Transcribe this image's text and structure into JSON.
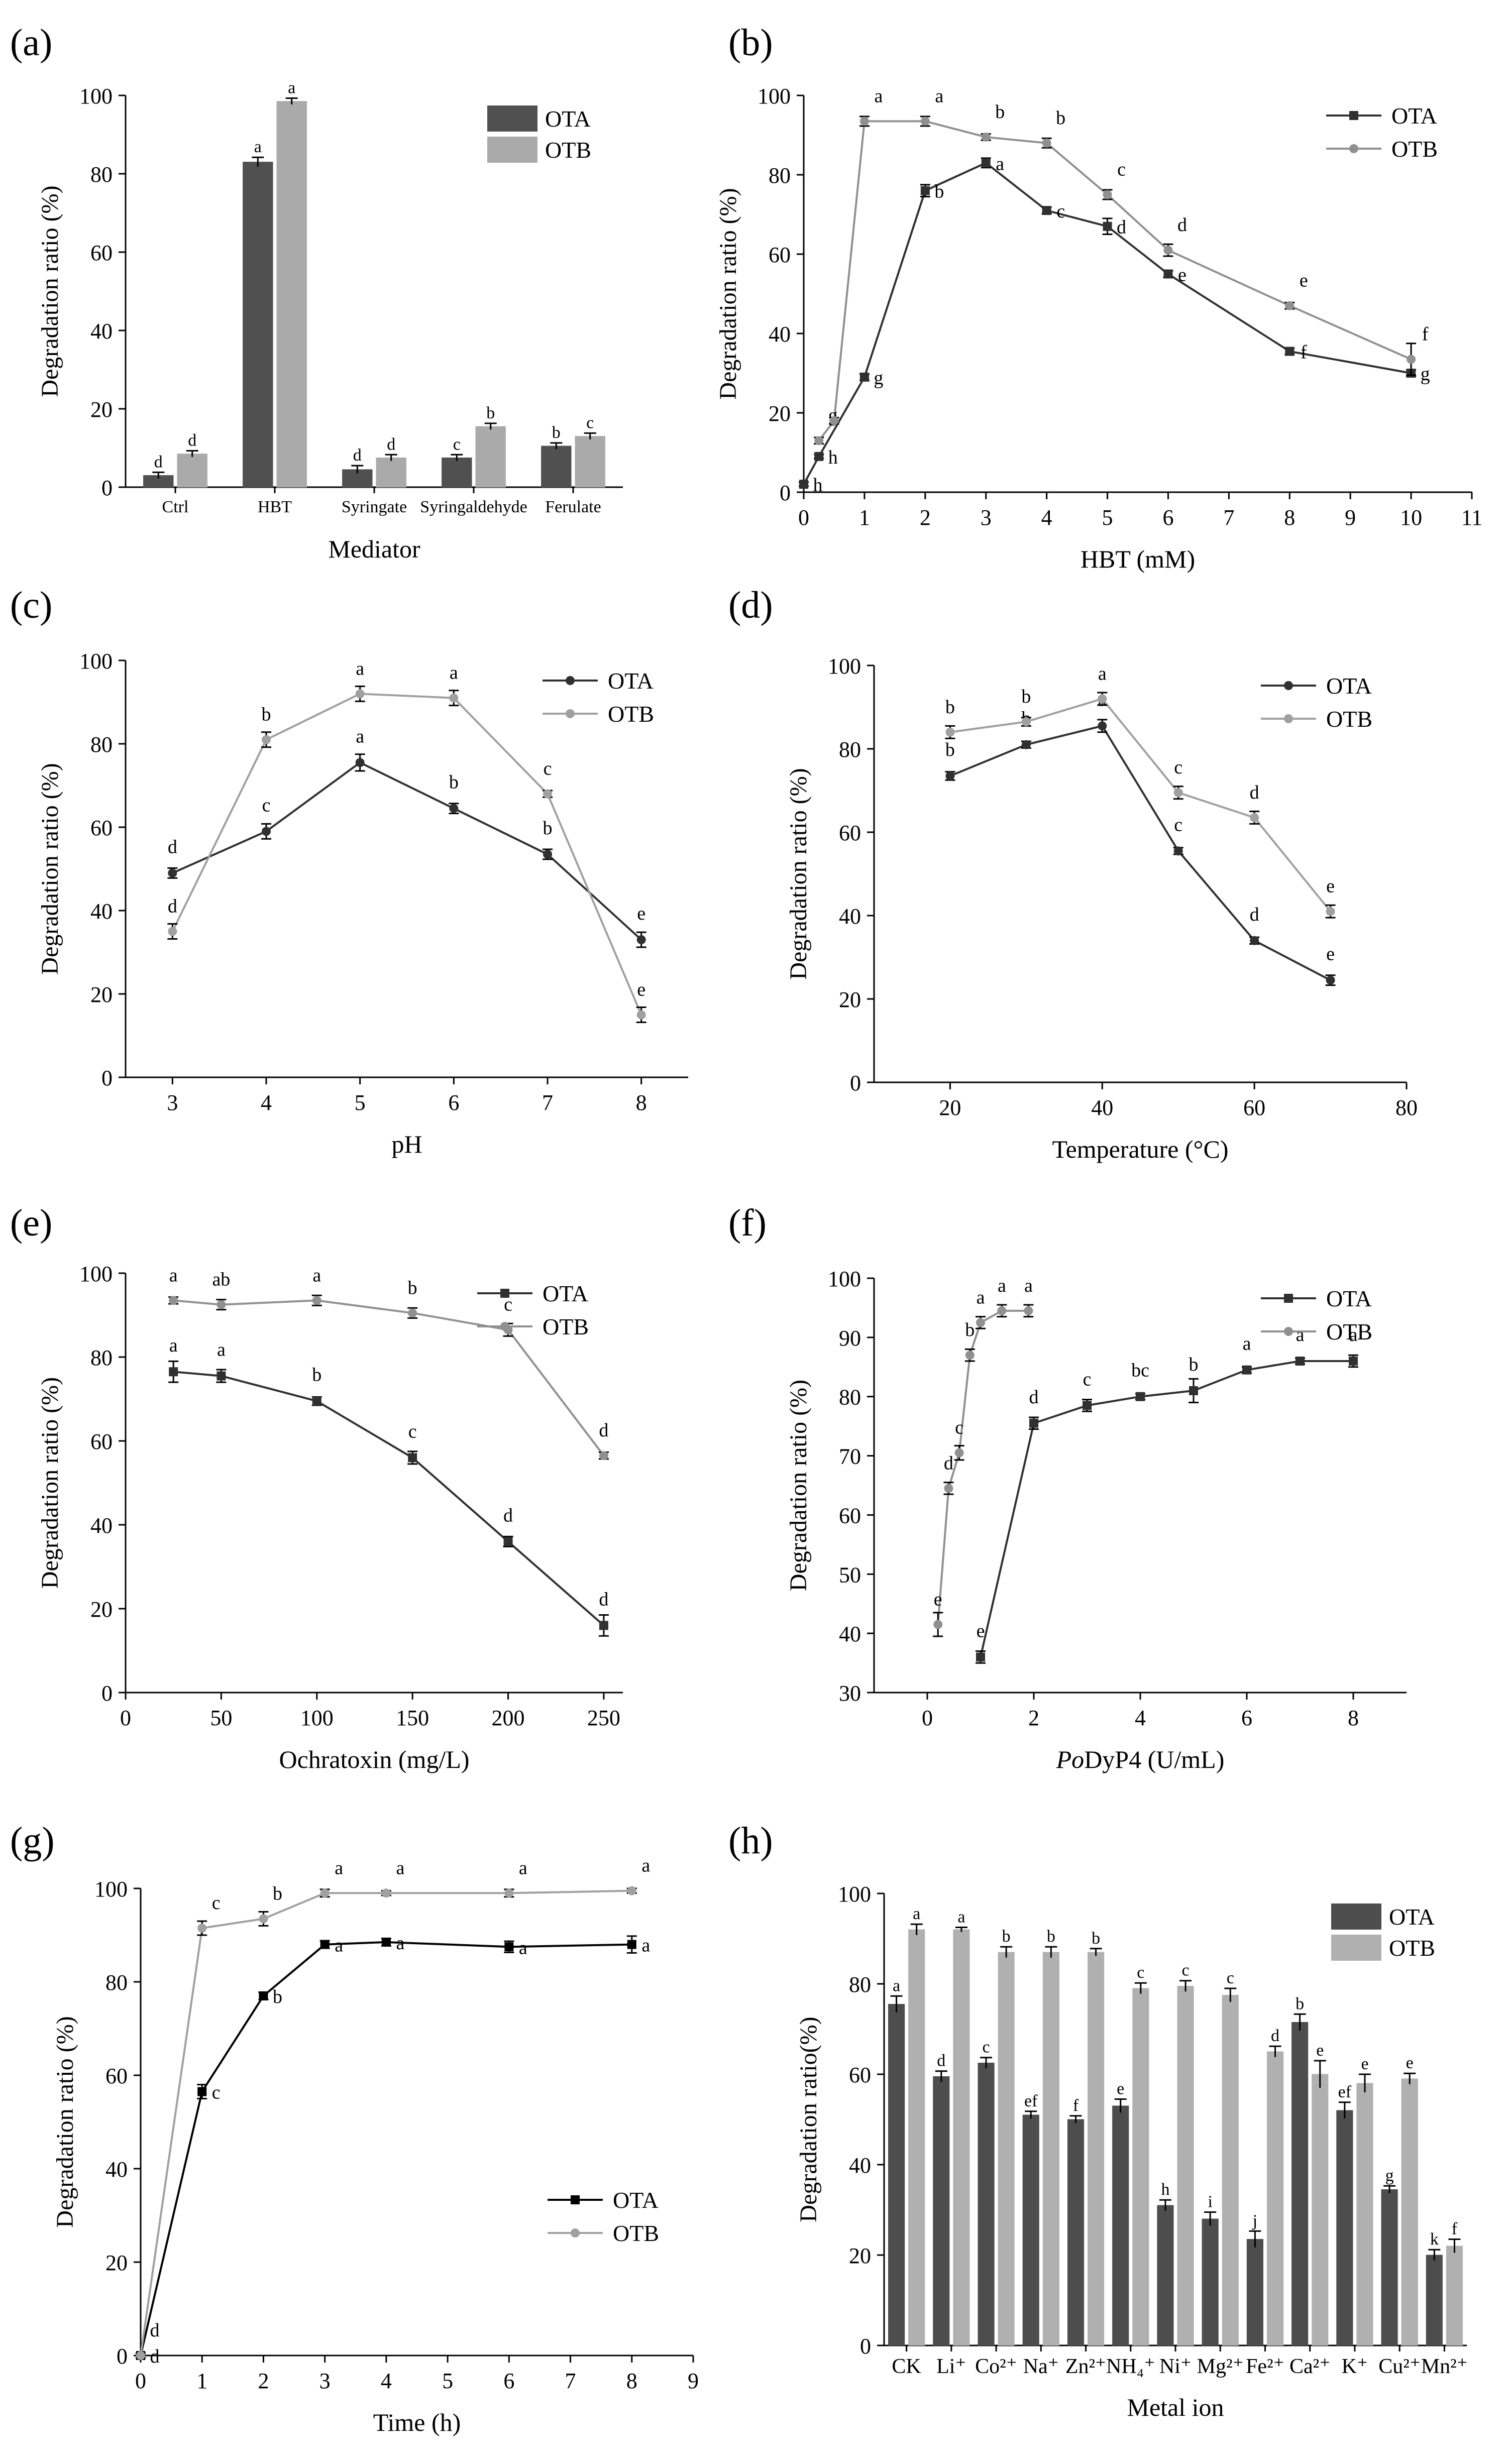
{
  "chart_data": [
    {
      "id": "a",
      "panel_label": "(a)",
      "type": "bar",
      "ylabel": "Degradation ratio (%)",
      "xlabel": "Mediator",
      "ylim": [
        0,
        100
      ],
      "yticks": [
        0,
        20,
        40,
        60,
        80,
        100
      ],
      "categories": [
        "Ctrl",
        "HBT",
        "Syringate",
        "Syringaldehyde",
        "Ferulate"
      ],
      "series": [
        {
          "name": "OTA",
          "color": "#505050",
          "values": [
            3,
            83,
            4.5,
            7.5,
            10.5
          ],
          "errors": [
            0.8,
            1.2,
            1.0,
            0.8,
            0.8
          ],
          "letters": [
            "d",
            "a",
            "d",
            "c",
            "b"
          ]
        },
        {
          "name": "OTB",
          "color": "#aaaaaa",
          "values": [
            8.5,
            98.5,
            7.5,
            15.5,
            13
          ],
          "errors": [
            0.8,
            0.8,
            0.8,
            0.8,
            0.8
          ],
          "letters": [
            "d",
            "a",
            "d",
            "b",
            "c"
          ]
        }
      ],
      "legend": "top-right"
    },
    {
      "id": "b",
      "panel_label": "(b)",
      "type": "line",
      "ylabel": "Degradation ratio (%)",
      "xlabel": "HBT (mM)",
      "xlim": [
        0,
        11
      ],
      "xticks": [
        0,
        1,
        2,
        3,
        4,
        5,
        6,
        7,
        8,
        9,
        10,
        11
      ],
      "ylim": [
        0,
        100
      ],
      "yticks": [
        0,
        20,
        40,
        60,
        80,
        100
      ],
      "series": [
        {
          "name": "OTA",
          "color": "#303030",
          "marker": "square",
          "x": [
            0,
            0.25,
            1,
            2,
            3,
            4,
            5,
            6,
            8,
            10
          ],
          "y": [
            2,
            9,
            29,
            76,
            83,
            71,
            67,
            55,
            35.5,
            30
          ],
          "errors": [
            0.5,
            0.5,
            0.8,
            1.5,
            1.2,
            0.8,
            2,
            0.8,
            0.8,
            0.8
          ],
          "letters": [
            "h",
            "h",
            "g",
            "b",
            "a",
            "c",
            "d",
            "e",
            "f",
            "g"
          ]
        },
        {
          "name": "OTB",
          "color": "#909090",
          "marker": "circle",
          "x": [
            0.25,
            0.5,
            1,
            2,
            3,
            4,
            5,
            6,
            8,
            10
          ],
          "y": [
            13,
            18,
            93.5,
            93.5,
            89.5,
            88,
            75,
            61,
            47,
            33.5
          ],
          "errors": [
            0.8,
            0.8,
            1.2,
            1.2,
            0.8,
            1.2,
            1.2,
            1.5,
            0.8,
            4
          ],
          "letters": [
            "g",
            "",
            "a",
            "a",
            "b",
            "b",
            "c",
            "d",
            "e",
            "f"
          ]
        }
      ],
      "legend": "top-right"
    },
    {
      "id": "c",
      "panel_label": "(c)",
      "type": "line",
      "ylabel": "Degradation ratio (%)",
      "xlabel": "pH",
      "xlim": [
        2.5,
        8.5
      ],
      "xticks": [
        3,
        4,
        5,
        6,
        7,
        8
      ],
      "ylim": [
        0,
        100
      ],
      "yticks": [
        0,
        20,
        40,
        60,
        80,
        100
      ],
      "series": [
        {
          "name": "OTA",
          "color": "#303030",
          "marker": "dot",
          "x": [
            3,
            4,
            5,
            6,
            7,
            8
          ],
          "y": [
            49,
            59,
            75.5,
            64.5,
            53.5,
            33
          ],
          "errors": [
            1.2,
            1.8,
            2,
            1.2,
            1.2,
            1.8
          ],
          "letters": [
            "d",
            "c",
            "a",
            "b",
            "b",
            "e"
          ]
        },
        {
          "name": "OTB",
          "color": "#a0a0a0",
          "marker": "dot",
          "x": [
            3,
            4,
            5,
            6,
            7,
            8
          ],
          "y": [
            35,
            81,
            92,
            91,
            68,
            15
          ],
          "errors": [
            1.8,
            1.8,
            1.8,
            1.8,
            0.8,
            1.8
          ],
          "letters": [
            "d",
            "b",
            "a",
            "a",
            "c",
            "e"
          ]
        }
      ],
      "legend": "top-right"
    },
    {
      "id": "d",
      "panel_label": "(d)",
      "type": "line",
      "ylabel": "Degradation ratio (%)",
      "xlabel": "Temperature (°C)",
      "xlim": [
        10,
        80
      ],
      "xticks": [
        20,
        40,
        60,
        80
      ],
      "ylim": [
        0,
        100
      ],
      "yticks": [
        0,
        20,
        40,
        60,
        80,
        100
      ],
      "series": [
        {
          "name": "OTA",
          "color": "#303030",
          "marker": "dot",
          "x": [
            20,
            30,
            40,
            50,
            60,
            70
          ],
          "y": [
            73.5,
            81,
            85.5,
            55.5,
            34,
            24.5
          ],
          "errors": [
            1,
            0.8,
            1.5,
            0.8,
            0.8,
            1.2
          ],
          "letters": [
            "b",
            "b",
            "a",
            "c",
            "d",
            "e"
          ]
        },
        {
          "name": "OTB",
          "color": "#a0a0a0",
          "marker": "dot",
          "x": [
            20,
            30,
            40,
            50,
            60,
            70
          ],
          "y": [
            84,
            86.5,
            92,
            69.5,
            63.5,
            41
          ],
          "errors": [
            1.5,
            1,
            1.5,
            1.5,
            1.5,
            1.5
          ],
          "letters": [
            "b",
            "b",
            "a",
            "c",
            "d",
            "e"
          ]
        }
      ],
      "legend": "top-right"
    },
    {
      "id": "e",
      "panel_label": "(e)",
      "type": "line",
      "ylabel": "Degradation ratio (%)",
      "xlabel": "Ochratoxin (mg/L)",
      "xlim": [
        0,
        260
      ],
      "xticks": [
        0,
        50,
        100,
        150,
        200,
        250
      ],
      "ylim": [
        0,
        100
      ],
      "yticks": [
        0,
        20,
        40,
        60,
        80,
        100
      ],
      "series": [
        {
          "name": "OTA",
          "color": "#303030",
          "marker": "square",
          "x": [
            25,
            50,
            100,
            150,
            200,
            250
          ],
          "y": [
            76.5,
            75.5,
            69.5,
            56,
            36,
            16
          ],
          "errors": [
            2.5,
            1.5,
            1,
            1.5,
            1.2,
            2.5
          ],
          "letters": [
            "a",
            "a",
            "b",
            "c",
            "d",
            "d"
          ]
        },
        {
          "name": "OTB",
          "color": "#909090",
          "marker": "circle",
          "x": [
            25,
            50,
            100,
            150,
            200,
            250
          ],
          "y": [
            93.5,
            92.5,
            93.5,
            90.5,
            86.5,
            56.5
          ],
          "errors": [
            0.8,
            1.2,
            1.2,
            1.2,
            1.5,
            0.8
          ],
          "letters": [
            "a",
            "ab",
            "a",
            "b",
            "c",
            "d"
          ]
        }
      ],
      "legend": "top-right"
    },
    {
      "id": "f",
      "panel_label": "(f)",
      "type": "line",
      "ylabel": "Degradation ratio (%)",
      "xlabel_prefix": "Po",
      "xlabel": "DyP4 (U/mL)",
      "xlim": [
        -1,
        9
      ],
      "xticks": [
        0,
        2,
        4,
        6,
        8
      ],
      "ylim": [
        30,
        100
      ],
      "yticks": [
        30,
        40,
        50,
        60,
        70,
        80,
        90,
        100
      ],
      "series": [
        {
          "name": "OTA",
          "color": "#303030",
          "marker": "square",
          "x": [
            1,
            2,
            3,
            4,
            5,
            6,
            7,
            8
          ],
          "y": [
            36,
            75.5,
            78.5,
            80,
            81,
            84.5,
            86,
            86
          ],
          "errors": [
            1,
            1,
            1,
            0.5,
            2,
            0.5,
            0.5,
            1
          ],
          "letters": [
            "e",
            "d",
            "c",
            "bc",
            "b",
            "a",
            "a",
            "a"
          ]
        },
        {
          "name": "OTB",
          "color": "#909090",
          "marker": "circle",
          "x": [
            0.2,
            0.4,
            0.6,
            0.8,
            1,
            1.4,
            1.9
          ],
          "y": [
            41.5,
            64.5,
            70.5,
            87,
            92.5,
            94.5,
            94.5
          ],
          "errors": [
            2,
            1,
            1.2,
            1,
            1,
            1,
            1
          ],
          "letters": [
            "e",
            "d",
            "c",
            "b",
            "a",
            "a",
            "a"
          ]
        }
      ],
      "legend": "top-right"
    },
    {
      "id": "g",
      "panel_label": "(g)",
      "type": "line",
      "ylabel": "Degradation ratio (%)",
      "xlabel": "Time (h)",
      "xlim": [
        0,
        9
      ],
      "xticks": [
        0,
        1,
        2,
        3,
        4,
        5,
        6,
        7,
        8,
        9
      ],
      "ylim": [
        0,
        100
      ],
      "yticks": [
        0,
        20,
        40,
        60,
        80,
        100
      ],
      "series": [
        {
          "name": "OTA",
          "color": "#000000",
          "marker": "square",
          "x": [
            0,
            1,
            2,
            3,
            4,
            6,
            8
          ],
          "y": [
            0,
            56.5,
            77,
            88,
            88.5,
            87.5,
            88
          ],
          "errors": [
            0.5,
            1.5,
            0.8,
            0.8,
            0.8,
            1.2,
            1.8
          ],
          "letters": [
            "d",
            "c",
            "b",
            "a",
            "a",
            "a",
            "a"
          ]
        },
        {
          "name": "OTB",
          "color": "#a0a0a0",
          "marker": "circle",
          "x": [
            0,
            1,
            2,
            3,
            4,
            6,
            8
          ],
          "y": [
            0,
            91.5,
            93.5,
            99,
            99,
            99,
            99.5
          ],
          "errors": [
            0.5,
            1.5,
            1.5,
            0.8,
            0.5,
            0.8,
            0.5
          ],
          "letters": [
            "d",
            "c",
            "b",
            "a",
            "a",
            "a",
            "a"
          ]
        }
      ],
      "legend": "bottom-right"
    },
    {
      "id": "h",
      "panel_label": "(h)",
      "type": "bar",
      "ylabel": "Degradation ratio(%)",
      "xlabel": "Metal ion",
      "ylim": [
        0,
        100
      ],
      "yticks": [
        0,
        20,
        40,
        60,
        80,
        100
      ],
      "categories": [
        "CK",
        "Li⁺",
        "Co²⁺",
        "Na⁺",
        "Zn²⁺",
        "NH₄⁺",
        "Ni⁺",
        "Mg²⁺",
        "Fe²⁺",
        "Ca²⁺",
        "K⁺",
        "Cu²⁺",
        "Mn²⁺"
      ],
      "series": [
        {
          "name": "OTA",
          "color": "#4d4d4d",
          "values": [
            75.5,
            59.5,
            62.5,
            51,
            50,
            53,
            31,
            28,
            23.5,
            71.5,
            52,
            34.5,
            20
          ],
          "errors": [
            1.8,
            1.2,
            1.2,
            0.8,
            0.8,
            1.5,
            1.2,
            1.5,
            1.8,
            1.8,
            1.8,
            0.8,
            1.2
          ],
          "letters": [
            "a",
            "d",
            "c",
            "ef",
            "f",
            "e",
            "h",
            "i",
            "j",
            "b",
            "ef",
            "g",
            "k"
          ]
        },
        {
          "name": "OTB",
          "color": "#b0b0b0",
          "values": [
            92,
            92,
            87,
            87,
            87,
            79,
            79.5,
            77.5,
            65,
            60,
            58,
            59,
            22
          ],
          "errors": [
            1.2,
            0.5,
            1.2,
            1.2,
            0.8,
            1.2,
            1.2,
            1.5,
            1.2,
            3,
            2,
            1.2,
            1.5
          ],
          "letters": [
            "a",
            "a",
            "b",
            "b",
            "b",
            "c",
            "c",
            "c",
            "d",
            "e",
            "e",
            "e",
            "f"
          ]
        }
      ],
      "legend": "top-right"
    }
  ]
}
